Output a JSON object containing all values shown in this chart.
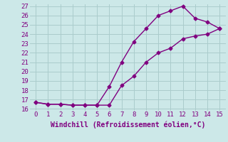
{
  "line1_x": [
    0,
    1,
    2,
    3,
    4,
    5,
    6,
    7,
    8,
    9,
    10,
    11,
    12,
    13,
    14,
    15
  ],
  "line1_y": [
    16.7,
    16.5,
    16.5,
    16.4,
    16.4,
    16.4,
    18.4,
    21.0,
    23.2,
    24.6,
    26.0,
    26.5,
    27.0,
    25.7,
    25.3,
    24.6
  ],
  "line2_x": [
    0,
    1,
    2,
    3,
    4,
    5,
    6,
    7,
    8,
    9,
    10,
    11,
    12,
    13,
    14,
    15
  ],
  "line2_y": [
    16.7,
    16.5,
    16.5,
    16.4,
    16.4,
    16.4,
    16.4,
    18.5,
    19.5,
    21.0,
    22.0,
    22.5,
    23.5,
    23.8,
    24.0,
    24.6
  ],
  "color": "#800080",
  "bg_color": "#cce8e8",
  "grid_color": "#aacccc",
  "xlabel": "Windchill (Refroidissement éolien,°C)",
  "xlim": [
    -0.5,
    15.5
  ],
  "ylim": [
    15.8,
    27.2
  ],
  "xticks": [
    0,
    1,
    2,
    3,
    4,
    5,
    6,
    7,
    8,
    9,
    10,
    11,
    12,
    13,
    14,
    15
  ],
  "yticks": [
    16,
    17,
    18,
    19,
    20,
    21,
    22,
    23,
    24,
    25,
    26,
    27
  ],
  "marker": "D",
  "markersize": 2.5,
  "linewidth": 1.0,
  "xlabel_fontsize": 7,
  "tick_fontsize": 6.5,
  "label_color": "#800080"
}
